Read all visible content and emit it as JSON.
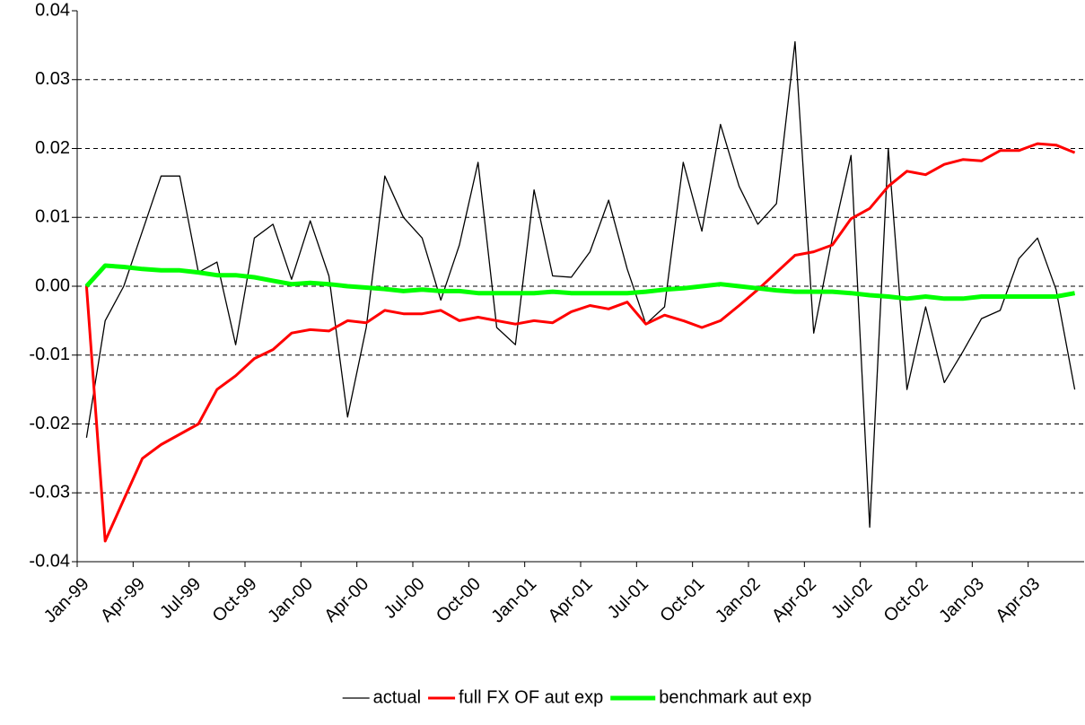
{
  "chart_data": {
    "type": "line",
    "categories": [
      "Jan-99",
      null,
      null,
      "Apr-99",
      null,
      null,
      "Jul-99",
      null,
      null,
      "Oct-99",
      null,
      null,
      "Jan-00",
      null,
      null,
      "Apr-00",
      null,
      null,
      "Jul-00",
      null,
      null,
      "Oct-00",
      null,
      null,
      "Jan-01",
      null,
      null,
      "Apr-01",
      null,
      null,
      "Jul-01",
      null,
      null,
      "Oct-01",
      null,
      null,
      "Jan-02",
      null,
      null,
      "Apr-02",
      null,
      null,
      "Jul-02",
      null,
      null,
      "Oct-02",
      null,
      null,
      "Jan-03",
      null,
      null,
      "Apr-03",
      null,
      null
    ],
    "series": [
      {
        "name": "actual",
        "color": "#000000",
        "values": [
          -0.022,
          -0.005,
          0.0,
          0.008,
          0.016,
          0.016,
          0.002,
          0.0035,
          -0.0085,
          0.007,
          0.009,
          0.001,
          0.0095,
          0.0015,
          -0.019,
          -0.006,
          0.016,
          0.01,
          0.007,
          -0.002,
          0.006,
          0.018,
          -0.006,
          -0.0085,
          0.014,
          0.0015,
          0.0013,
          0.005,
          0.0125,
          0.0025,
          -0.0055,
          -0.003,
          0.018,
          0.008,
          0.0235,
          0.0145,
          0.009,
          0.012,
          0.0355,
          -0.0068,
          0.007,
          0.019,
          -0.035,
          0.02,
          -0.015,
          -0.003,
          -0.014,
          -0.0095,
          -0.0047,
          -0.0035,
          0.004,
          0.007,
          -0.0005,
          -0.015
        ]
      },
      {
        "name": "full FX OF aut exp",
        "color": "#ff0000",
        "values": [
          0.0,
          -0.037,
          -0.031,
          -0.025,
          -0.023,
          -0.0215,
          -0.02,
          -0.015,
          -0.013,
          -0.0105,
          -0.0092,
          -0.0068,
          -0.0063,
          -0.0065,
          -0.005,
          -0.0053,
          -0.0035,
          -0.004,
          -0.004,
          -0.0035,
          -0.005,
          -0.0045,
          -0.005,
          -0.0055,
          -0.005,
          -0.0053,
          -0.0037,
          -0.0028,
          -0.0033,
          -0.0023,
          -0.0055,
          -0.0042,
          -0.005,
          -0.006,
          -0.005,
          -0.0028,
          -0.0005,
          0.002,
          0.0045,
          0.005,
          0.006,
          0.0098,
          0.0113,
          0.0145,
          0.0167,
          0.0162,
          0.0177,
          0.0184,
          0.0182,
          0.0197,
          0.0197,
          0.0207,
          0.0205,
          0.0194
        ]
      },
      {
        "name": "benchmark aut exp",
        "color": "#00ff00",
        "values": [
          0.0,
          0.003,
          0.0028,
          0.0025,
          0.0023,
          0.0023,
          0.002,
          0.0016,
          0.0016,
          0.0013,
          0.0008,
          0.0003,
          0.0005,
          0.0003,
          0.0,
          -0.0002,
          -0.0004,
          -0.0007,
          -0.0005,
          -0.0007,
          -0.0007,
          -0.001,
          -0.001,
          -0.001,
          -0.001,
          -0.0008,
          -0.001,
          -0.001,
          -0.001,
          -0.001,
          -0.0008,
          -0.0005,
          -0.0003,
          0.0,
          0.0003,
          0.0,
          -0.0003,
          -0.0006,
          -0.0008,
          -0.0008,
          -0.0008,
          -0.001,
          -0.0013,
          -0.0015,
          -0.0018,
          -0.0015,
          -0.0018,
          -0.0018,
          -0.0015,
          -0.0015,
          -0.0015,
          -0.0015,
          -0.0015,
          -0.001
        ]
      }
    ],
    "ylim": [
      -0.04,
      0.04
    ],
    "yticks": [
      -0.04,
      -0.03,
      -0.02,
      -0.01,
      {
        "value": 0,
        "label": "0.00"
      },
      0.01,
      0.02,
      0.03,
      0.04
    ],
    "grid": true,
    "legend": "bottom"
  }
}
